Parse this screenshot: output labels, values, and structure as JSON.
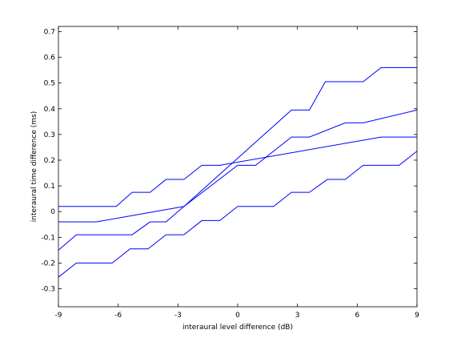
{
  "chart_data": {
    "type": "line",
    "xlabel": "interaural level difference (dB)",
    "ylabel": "interaural time difference (ms)",
    "xlim": [
      -9,
      9
    ],
    "ylim": [
      -0.37,
      0.72
    ],
    "xticks": [
      -9,
      -6,
      -3,
      0,
      3,
      6,
      9
    ],
    "yticks": [
      -0.3,
      -0.2,
      -0.1,
      0,
      0.1,
      0.2,
      0.3,
      0.4,
      0.5,
      0.6,
      0.7
    ],
    "xtick_labels": [
      "-9",
      "-6",
      "-3",
      "0",
      "3",
      "6",
      "9"
    ],
    "ytick_labels": [
      "-0.3",
      "-0.2",
      "-0.1",
      "0",
      "0.1",
      "0.2",
      "0.3",
      "0.4",
      "0.5",
      "0.6",
      "0.7"
    ],
    "grid": false,
    "line_color": "#0000ff",
    "series": [
      {
        "x": [
          -9,
          -7.1,
          -2.7,
          2.7,
          3.6,
          4.4,
          6.3,
          7.2,
          9
        ],
        "y": [
          -0.04,
          -0.04,
          0.02,
          0.395,
          0.395,
          0.505,
          0.505,
          0.56,
          0.56
        ]
      },
      {
        "x": [
          -9,
          -6.1,
          -5.3,
          -4.4,
          -3.6,
          -2.7,
          -1.8,
          -0.9,
          7.2,
          9
        ],
        "y": [
          0.02,
          0.02,
          0.075,
          0.075,
          0.125,
          0.125,
          0.18,
          0.18,
          0.29,
          0.29
        ]
      },
      {
        "x": [
          -9,
          -8.1,
          -5.3,
          -4.4,
          -3.6,
          -2.7,
          0.0,
          0.9,
          2.7,
          3.6,
          5.4,
          6.3,
          9
        ],
        "y": [
          -0.15,
          -0.09,
          -0.09,
          -0.04,
          -0.04,
          0.02,
          0.18,
          0.18,
          0.29,
          0.29,
          0.345,
          0.345,
          0.395
        ]
      },
      {
        "x": [
          -9,
          -8.1,
          -6.3,
          -5.4,
          -4.5,
          -3.6,
          -2.7,
          -1.8,
          -0.9,
          0.0,
          1.8,
          2.7,
          3.6,
          4.5,
          5.4,
          6.3,
          8.1,
          9
        ],
        "y": [
          -0.255,
          -0.2,
          -0.2,
          -0.145,
          -0.145,
          -0.09,
          -0.09,
          -0.035,
          -0.035,
          0.02,
          0.02,
          0.075,
          0.075,
          0.125,
          0.125,
          0.18,
          0.18,
          0.235
        ]
      }
    ]
  }
}
